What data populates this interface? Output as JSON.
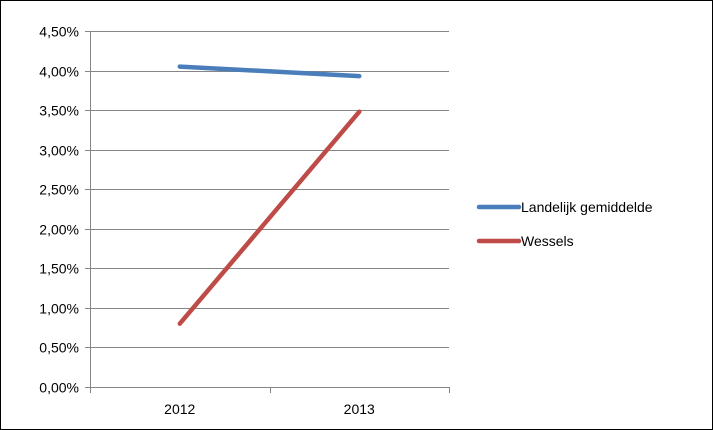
{
  "chart_data": {
    "type": "line",
    "categories": [
      "2012",
      "2013"
    ],
    "series": [
      {
        "name": "Landelijk gemiddelde",
        "values": [
          4.05,
          3.93
        ],
        "color": "#4a7ebb"
      },
      {
        "name": "Wessels",
        "values": [
          0.8,
          3.48
        ],
        "color": "#be4b48"
      }
    ],
    "y_ticks": [
      0,
      0.5,
      1,
      1.5,
      2,
      2.5,
      3,
      3.5,
      4,
      4.5
    ],
    "y_tick_labels": [
      "0,00%",
      "0,50%",
      "1,00%",
      "1,50%",
      "2,00%",
      "2,50%",
      "3,00%",
      "3,50%",
      "4,00%",
      "4,50%"
    ],
    "ylim": [
      0,
      4.5
    ],
    "ylabel_unit": "%",
    "grid": true,
    "legend": "right",
    "gridline_color": "#868686",
    "axis_color": "#868686"
  }
}
